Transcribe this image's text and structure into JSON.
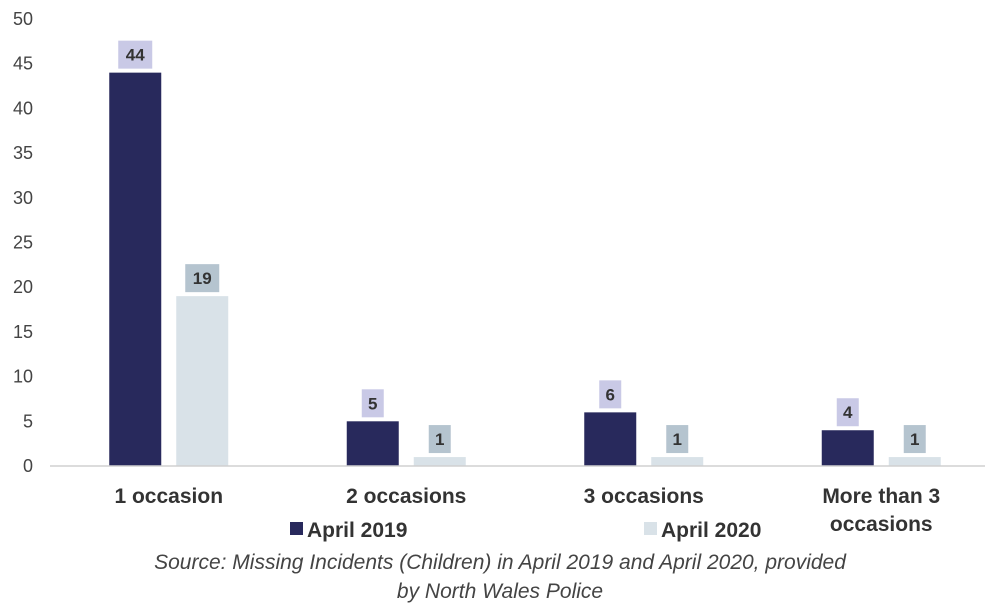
{
  "chart_data": {
    "type": "bar",
    "categories": [
      "1 occasion",
      "2 occasions",
      "3 occasions",
      "More than 3 occasions"
    ],
    "category_lines": [
      [
        "1 occasion"
      ],
      [
        "2 occasions"
      ],
      [
        "3 occasions"
      ],
      [
        "More than 3",
        "occasions"
      ]
    ],
    "series": [
      {
        "name": "April 2019",
        "values": [
          44,
          5,
          6,
          4
        ],
        "color": "#28295c",
        "label_bg": "#c9c9e6"
      },
      {
        "name": "April 2020",
        "values": [
          19,
          1,
          1,
          1
        ],
        "color": "#d9e2e8",
        "label_bg": "#b5c4cf"
      }
    ],
    "ylim": [
      0,
      50
    ],
    "yticks": [
      0,
      5,
      10,
      15,
      20,
      25,
      30,
      35,
      40,
      45,
      50
    ],
    "grid": false,
    "legend_position": "bottom",
    "xlabel": "",
    "ylabel": ""
  },
  "source": {
    "line1": "Source: Missing Incidents (Children) in April 2019 and April 2020, provided",
    "line2": "by North Wales Police"
  }
}
